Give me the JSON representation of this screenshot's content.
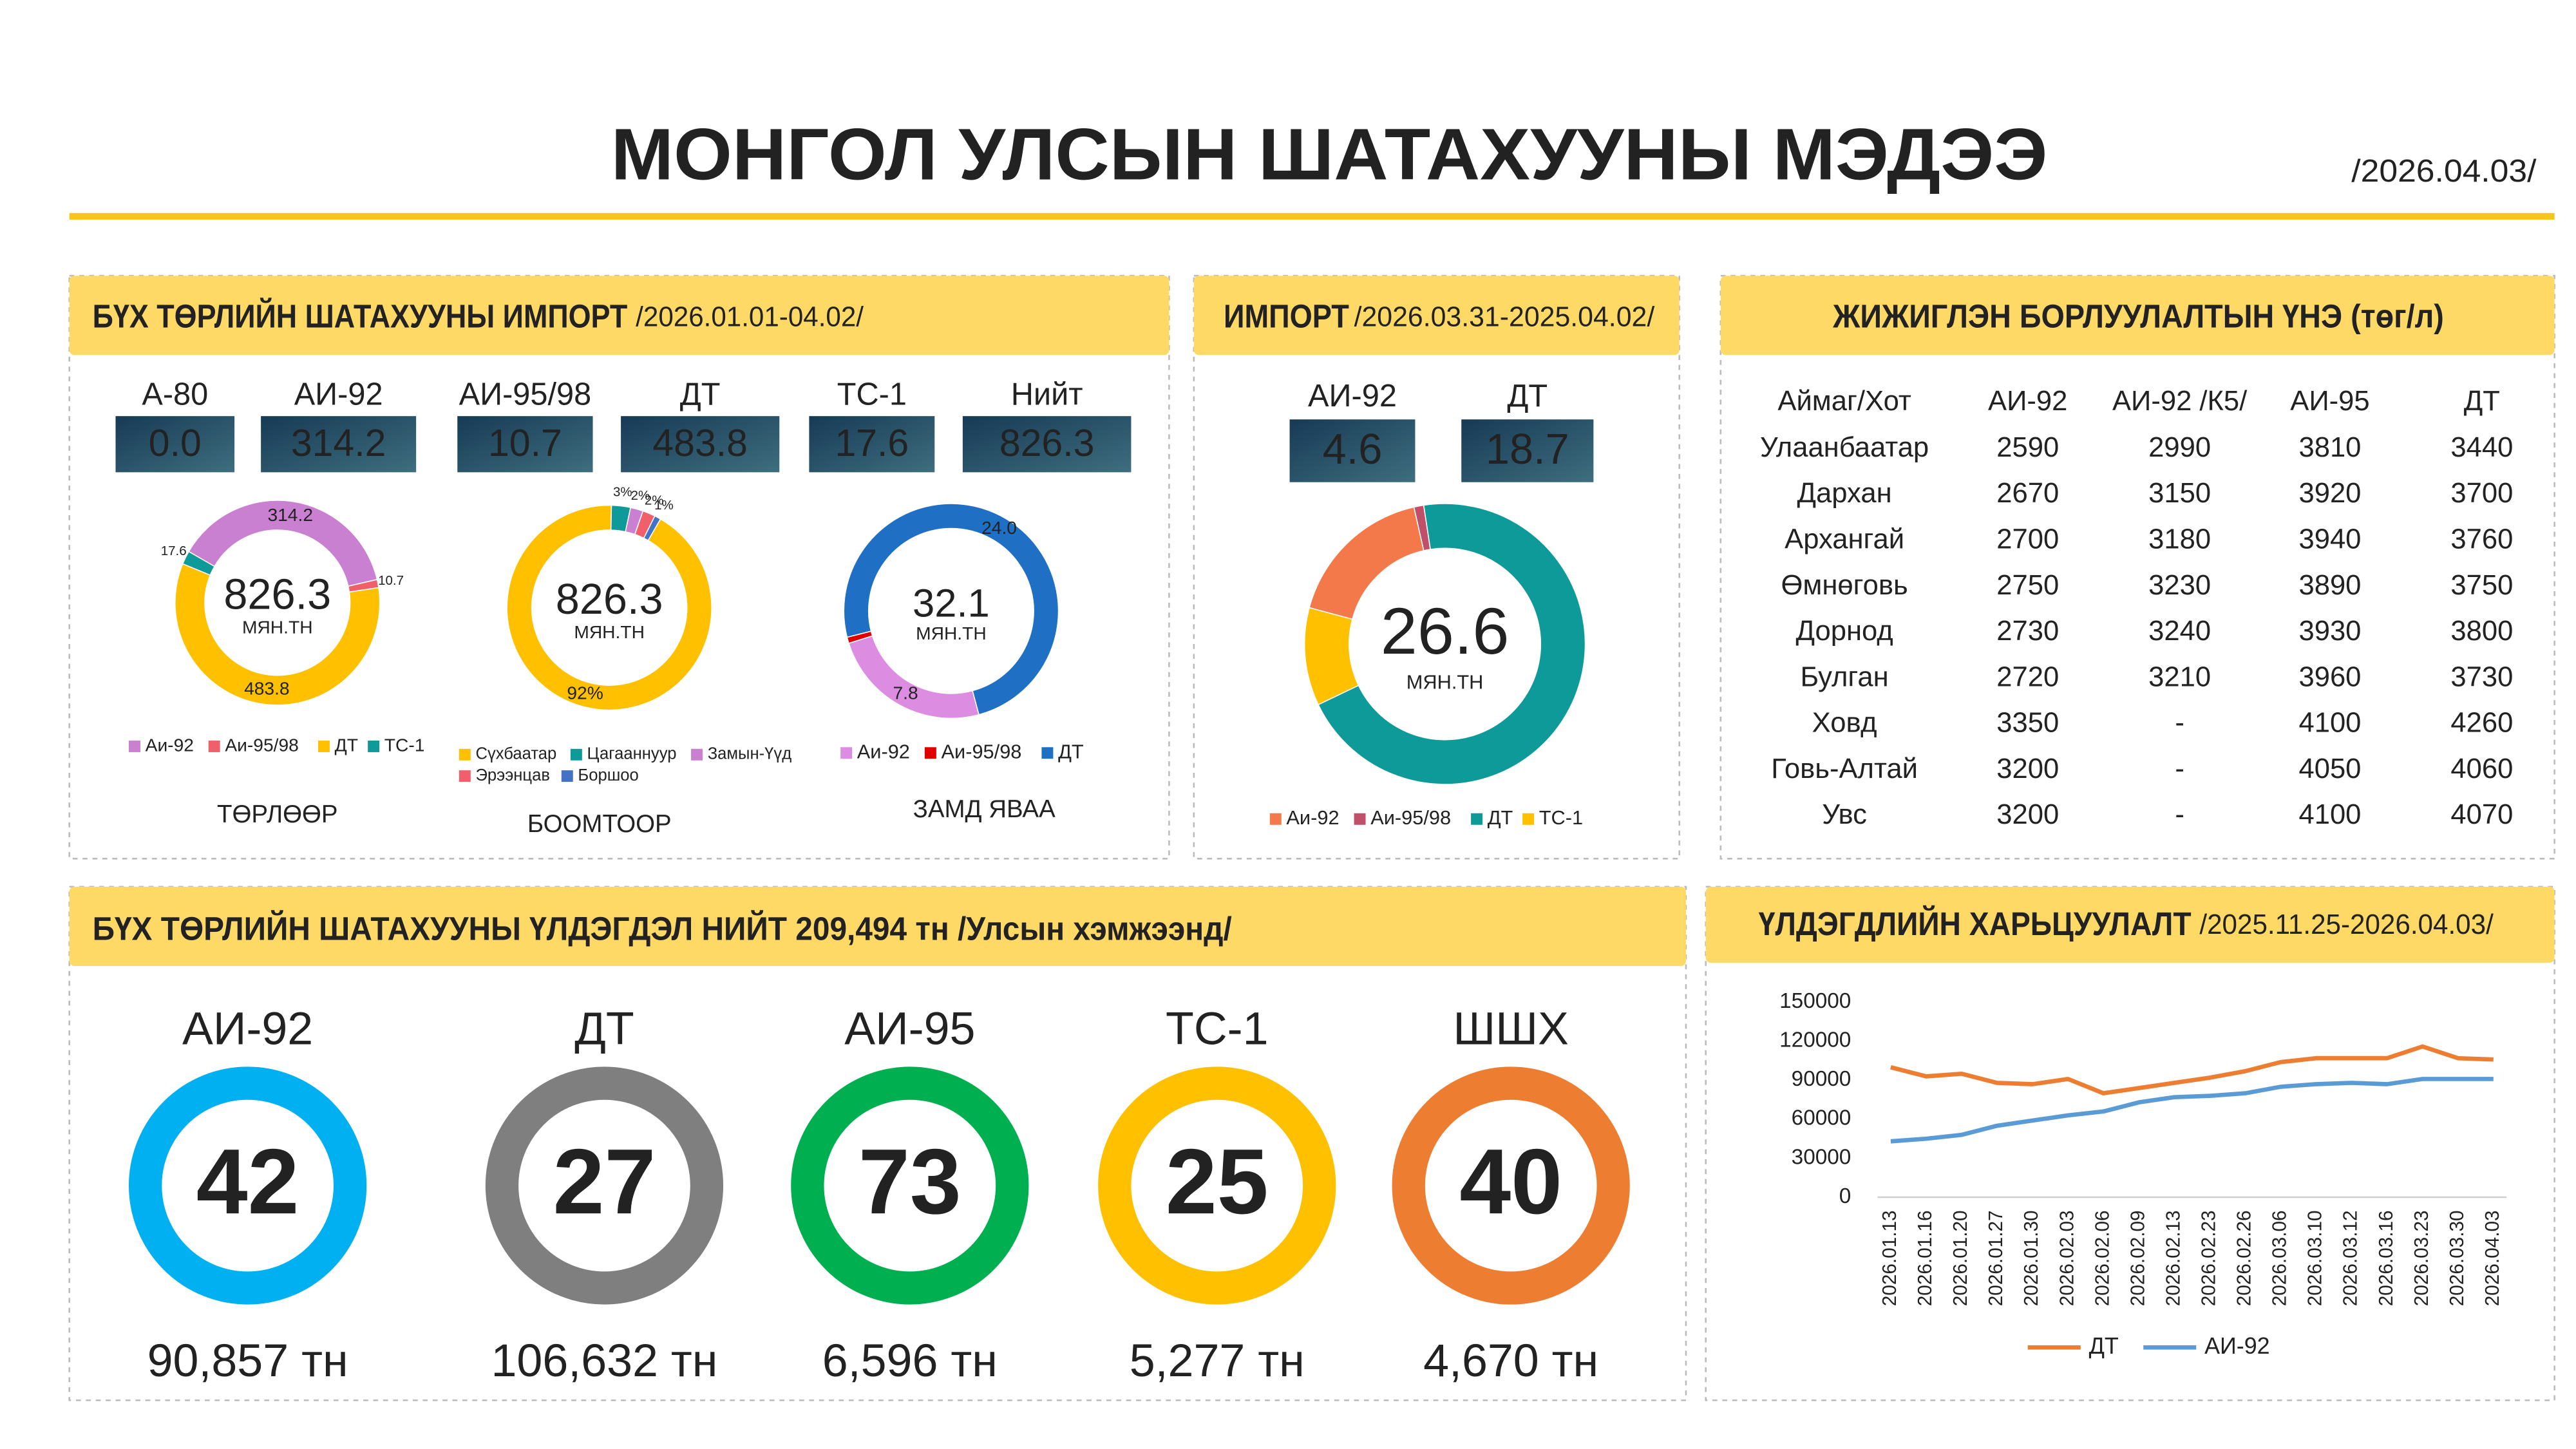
{
  "header": {
    "title": "МОНГОЛ УЛСЫН ШАТАХУУНЫ МЭДЭЭ",
    "date": "/2026.04.03/"
  },
  "import_total": {
    "title": "БҮХ ТӨРЛИЙН ШАТАХУУНЫ ИМПОРТ",
    "period": "/2026.01.01-04.02/",
    "stats": [
      {
        "label": "А-80",
        "value": "0.0"
      },
      {
        "label": "АИ-92",
        "value": "314.2"
      },
      {
        "label": "АИ-95/98",
        "value": "10.7"
      },
      {
        "label": "ДТ",
        "value": "483.8"
      },
      {
        "label": "ТС-1",
        "value": "17.6"
      },
      {
        "label": "Нийт",
        "value": "826.3"
      }
    ]
  },
  "import_recent": {
    "title": "ИМПОРТ",
    "period": "/2026.03.31-2025.04.02/",
    "stats": [
      {
        "label": "АИ-92",
        "value": "4.6"
      },
      {
        "label": "ДТ",
        "value": "18.7"
      }
    ]
  },
  "retail_prices": {
    "title": "ЖИЖИГЛЭН БОРЛУУЛАЛТЫН ҮНЭ (төг/л)",
    "columns": [
      "Аймаг/Хот",
      "АИ-92",
      "АИ-92 /К5/",
      "АИ-95",
      "ДТ"
    ],
    "rows": [
      [
        "Улаанбаатар",
        2590,
        2990,
        3810,
        3440
      ],
      [
        "Дархан",
        2670,
        3150,
        3920,
        3700
      ],
      [
        "Архангай",
        2700,
        3180,
        3940,
        3760
      ],
      [
        "Өмнөговь",
        2750,
        3230,
        3890,
        3750
      ],
      [
        "Дорнод",
        2730,
        3240,
        3930,
        3800
      ],
      [
        "Булган",
        2720,
        3210,
        3960,
        3730
      ],
      [
        "Ховд",
        3350,
        "-",
        4100,
        4260
      ],
      [
        "Говь-Алтай",
        3200,
        "-",
        4050,
        4060
      ],
      [
        "Увс",
        3200,
        "-",
        4100,
        4070
      ]
    ]
  },
  "stock": {
    "title": "БҮХ ТӨРЛИЙН ШАТАХУУНЫ ҮЛДЭГДЭЛ НИЙТ 209,494 тн /Улсын хэмжээнд/",
    "items": [
      {
        "name": "АИ-92",
        "days": "42",
        "amount": "90,857 тн",
        "color": "#00b0f0"
      },
      {
        "name": "ДТ",
        "days": "27",
        "amount": "106,632 тн",
        "color": "#7f7f7f"
      },
      {
        "name": "АИ-95",
        "days": "73",
        "amount": "6,596 тн",
        "color": "#00b050"
      },
      {
        "name": "ТС-1",
        "days": "25",
        "amount": "5,277 тн",
        "color": "#ffc000"
      },
      {
        "name": "ШШХ",
        "days": "40",
        "amount": "4,670 тн",
        "color": "#ed7d31"
      }
    ]
  },
  "chart_data": [
    {
      "type": "donut",
      "center_value": "826.3",
      "center_unit": "МЯН.ТН",
      "caption": "ТӨРЛӨӨР",
      "categories": [
        "Аи-92",
        "Аи-95/98",
        "ДТ",
        "ТС-1"
      ],
      "values": [
        314.2,
        10.7,
        483.8,
        17.6
      ],
      "colors": [
        "#c980d0",
        "#f0606a",
        "#ffc000",
        "#0e9a98"
      ],
      "data_labels": true
    },
    {
      "type": "donut",
      "center_value": "826.3",
      "center_unit": "МЯН.ТН",
      "caption": "БООМТООР",
      "categories": [
        "Сүхбаатар",
        "Цагааннуур",
        "Замын-Үүд",
        "Эрээнцав",
        "Боршоо"
      ],
      "values": [
        92,
        3,
        2,
        2,
        1
      ],
      "value_labels": [
        "92%",
        "3%",
        "2%",
        "2%",
        "1%"
      ],
      "colors": [
        "#ffc000",
        "#0e9a98",
        "#c980d0",
        "#f0606a",
        "#4472c4"
      ],
      "data_labels": true
    },
    {
      "type": "donut",
      "center_value": "32.1",
      "center_unit": "МЯН.ТН",
      "caption": "ЗАМД ЯВАА",
      "categories": [
        "Аи-92",
        "Аи-95/98",
        "ДТ"
      ],
      "values": [
        7.8,
        0.3,
        24.0
      ],
      "value_labels": [
        "7.8",
        null,
        "24.0"
      ],
      "colors": [
        "#dc8de2",
        "#e00000",
        "#1f6fc5"
      ],
      "data_labels": true
    },
    {
      "type": "donut",
      "center_value": "26.6",
      "center_unit": "МЯН.ТН",
      "categories": [
        "Аи-92",
        "Аи-95/98",
        "ДТ",
        "ТС-1"
      ],
      "values": [
        4.6,
        0.3,
        18.7,
        3.0
      ],
      "colors": [
        "#f4794a",
        "#c0506a",
        "#0e9a98",
        "#ffc000"
      ],
      "data_labels": false
    },
    {
      "type": "line",
      "title": "ҮЛДЭГДЛИЙН ХАРЬЦУУЛАЛТ",
      "subtitle": "/2025.11.25-2026.04.03/",
      "categories": [
        "2026.01.13",
        "2026.01.16",
        "2026.01.20",
        "2026.01.27",
        "2026.01.30",
        "2026.02.03",
        "2026.02.06",
        "2026.02.09",
        "2026.02.13",
        "2026.02.23",
        "2026.02.26",
        "2026.03.06",
        "2026.03.10",
        "2026.03.12",
        "2026.03.16",
        "2026.03.23",
        "2026.03.30",
        "2026.04.03"
      ],
      "series": [
        {
          "name": "ДТ",
          "color": "#ed7d31",
          "values": [
            100000,
            93000,
            95000,
            88000,
            87000,
            91000,
            80000,
            84000,
            88000,
            92000,
            97000,
            104000,
            107000,
            107000,
            107000,
            116000,
            107000,
            106000
          ]
        },
        {
          "name": "АИ-92",
          "color": "#5b9bd5",
          "values": [
            43000,
            45000,
            48000,
            55000,
            59000,
            63000,
            66000,
            73000,
            77000,
            78000,
            80000,
            85000,
            87000,
            88000,
            87000,
            91000,
            91000,
            91000
          ]
        }
      ],
      "ylim": [
        0,
        150000
      ],
      "yticks": [
        0,
        30000,
        60000,
        90000,
        120000,
        150000
      ],
      "legend": "bottom"
    }
  ]
}
